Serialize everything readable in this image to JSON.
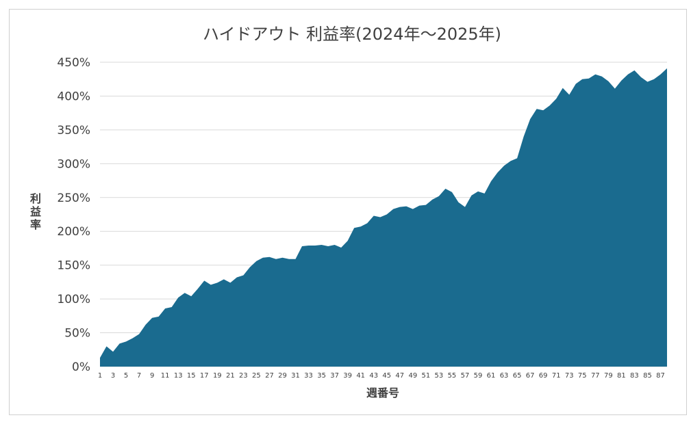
{
  "chart_data": {
    "type": "area",
    "title": "ハイドアウト 利益率(2024年～2025年)",
    "xlabel": "週番号",
    "ylabel": "利益率",
    "y_unit": "%",
    "ylim": [
      0,
      450
    ],
    "y_ticks": [
      0,
      50,
      100,
      150,
      200,
      250,
      300,
      350,
      400,
      450
    ],
    "y_tick_labels": [
      "0%",
      "50%",
      "100%",
      "150%",
      "200%",
      "250%",
      "300%",
      "350%",
      "400%",
      "450%"
    ],
    "grid": true,
    "legend": false,
    "color": "#1a6b8f",
    "x_tick_labels": [
      "1",
      "3",
      "5",
      "7",
      "9",
      "11",
      "13",
      "15",
      "17",
      "19",
      "21",
      "23",
      "25",
      "27",
      "29",
      "31",
      "33",
      "35",
      "37",
      "39",
      "41",
      "43",
      "45",
      "47",
      "49",
      "51",
      "53",
      "55",
      "57",
      "59",
      "61",
      "63",
      "65",
      "67",
      "69",
      "71",
      "73",
      "75",
      "77",
      "79",
      "81",
      "83",
      "85",
      "87"
    ],
    "x": [
      1,
      2,
      3,
      4,
      5,
      6,
      7,
      8,
      9,
      10,
      11,
      12,
      13,
      14,
      15,
      16,
      17,
      18,
      19,
      20,
      21,
      22,
      23,
      24,
      25,
      26,
      27,
      28,
      29,
      30,
      31,
      32,
      33,
      34,
      35,
      36,
      37,
      38,
      39,
      40,
      41,
      42,
      43,
      44,
      45,
      46,
      47,
      48,
      49,
      50,
      51,
      52,
      53,
      54,
      55,
      56,
      57,
      58,
      59,
      60,
      61,
      62,
      63,
      64,
      65,
      66,
      67,
      68,
      69,
      70,
      71,
      72,
      73,
      74,
      75,
      76,
      77,
      78,
      79,
      80,
      81,
      82,
      83,
      84,
      85,
      86,
      87,
      88
    ],
    "values": [
      13,
      30,
      22,
      34,
      37,
      42,
      48,
      62,
      72,
      74,
      86,
      88,
      102,
      109,
      104,
      115,
      127,
      121,
      124,
      129,
      124,
      132,
      135,
      147,
      156,
      161,
      162,
      159,
      161,
      159,
      159,
      178,
      179,
      179,
      180,
      178,
      180,
      176,
      186,
      205,
      207,
      212,
      223,
      221,
      225,
      233,
      236,
      237,
      233,
      238,
      239,
      247,
      252,
      263,
      258,
      243,
      236,
      253,
      259,
      256,
      274,
      287,
      297,
      304,
      308,
      340,
      366,
      381,
      379,
      386,
      396,
      412,
      402,
      418,
      425,
      426,
      432,
      429,
      422,
      411,
      423,
      432,
      438,
      428,
      421,
      425,
      432,
      441
    ]
  }
}
